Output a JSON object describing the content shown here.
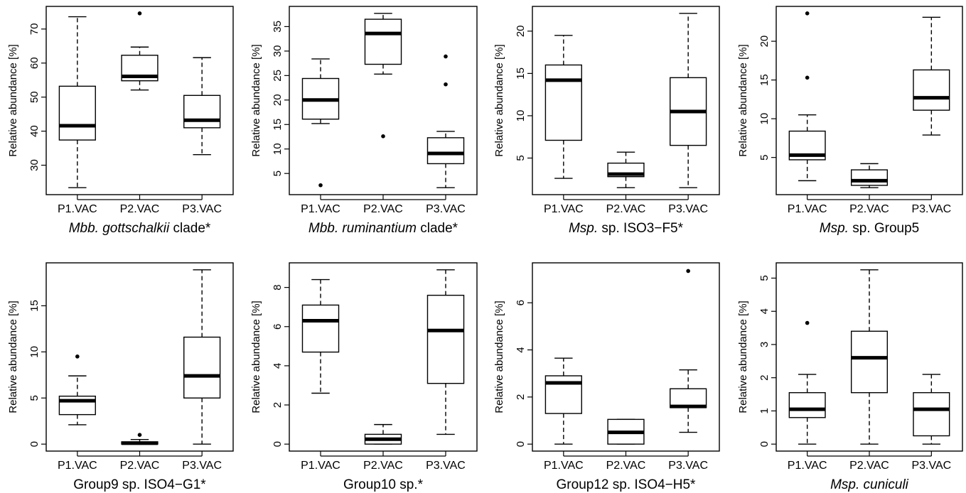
{
  "figure": {
    "ylabel": "Relative abundance [%]"
  },
  "chart_data": [
    {
      "type": "box",
      "title_italic": "Mbb. gottschalkii",
      "title_normal": " clade*",
      "ylabel": "Relative abundance [%]",
      "categories": [
        "P1.VAC",
        "P2.VAC",
        "P3.VAC"
      ],
      "yticks": [
        30,
        40,
        50,
        60,
        70
      ],
      "ylim": [
        23.4,
        74.6
      ],
      "boxes": [
        {
          "whisker_low": 23.4,
          "q1": 37.4,
          "median": 41.6,
          "q3": 53.2,
          "whisker_high": 73.6,
          "outliers": []
        },
        {
          "whisker_low": 52.1,
          "q1": 54.8,
          "median": 56.1,
          "q3": 62.3,
          "whisker_high": 64.7,
          "outliers": [
            74.6
          ]
        },
        {
          "whisker_low": 33.1,
          "q1": 41.0,
          "median": 43.2,
          "q3": 50.5,
          "whisker_high": 61.6,
          "outliers": []
        }
      ]
    },
    {
      "type": "box",
      "title_italic": "Mbb. ruminantium",
      "title_normal": " clade*",
      "ylabel": "Relative abundance [%]",
      "categories": [
        "P1.VAC",
        "P2.VAC",
        "P3.VAC"
      ],
      "yticks": [
        5,
        10,
        15,
        20,
        25,
        30,
        35
      ],
      "ylim": [
        2.1,
        37.7
      ],
      "boxes": [
        {
          "whisker_low": 15.2,
          "q1": 16.1,
          "median": 20.0,
          "q3": 24.4,
          "whisker_high": 28.4,
          "outliers": [
            2.6
          ]
        },
        {
          "whisker_low": 25.3,
          "q1": 27.3,
          "median": 33.6,
          "q3": 36.5,
          "whisker_high": 37.7,
          "outliers": [
            12.6
          ]
        },
        {
          "whisker_low": 2.1,
          "q1": 7.0,
          "median": 9.1,
          "q3": 12.3,
          "whisker_high": 13.6,
          "outliers": [
            23.2,
            28.9
          ]
        }
      ]
    },
    {
      "type": "box",
      "title_italic": "Msp.",
      "title_normal": " sp. ISO3−F5*",
      "ylabel": "Relative abundance [%]",
      "categories": [
        "P1.VAC",
        "P2.VAC",
        "P3.VAC"
      ],
      "yticks": [
        5,
        10,
        15,
        20
      ],
      "ylim": [
        1.5,
        22.1
      ],
      "boxes": [
        {
          "whisker_low": 2.6,
          "q1": 7.1,
          "median": 14.2,
          "q3": 16.0,
          "whisker_high": 19.5,
          "outliers": []
        },
        {
          "whisker_low": 1.5,
          "q1": 2.8,
          "median": 3.1,
          "q3": 4.4,
          "whisker_high": 5.7,
          "outliers": []
        },
        {
          "whisker_low": 1.5,
          "q1": 6.5,
          "median": 10.5,
          "q3": 14.5,
          "whisker_high": 22.1,
          "outliers": []
        }
      ]
    },
    {
      "type": "box",
      "title_italic": "Msp.",
      "title_normal": " sp. Group5",
      "ylabel": "Relative abundance [%]",
      "categories": [
        "P1.VAC",
        "P2.VAC",
        "P3.VAC"
      ],
      "yticks": [
        5,
        10,
        15,
        20
      ],
      "ylim": [
        1.1,
        23.6
      ],
      "boxes": [
        {
          "whisker_low": 2.0,
          "q1": 4.7,
          "median": 5.3,
          "q3": 8.4,
          "whisker_high": 10.5,
          "outliers": [
            15.3,
            23.6
          ]
        },
        {
          "whisker_low": 1.1,
          "q1": 1.4,
          "median": 2.0,
          "q3": 3.4,
          "whisker_high": 4.2,
          "outliers": []
        },
        {
          "whisker_low": 7.9,
          "q1": 11.1,
          "median": 12.7,
          "q3": 16.3,
          "whisker_high": 23.1,
          "outliers": []
        }
      ]
    },
    {
      "type": "box",
      "title_italic": "",
      "title_normal": "Group9 sp. ISO4−G1*",
      "ylabel": "Relative abundance [%]",
      "categories": [
        "P1.VAC",
        "P2.VAC",
        "P3.VAC"
      ],
      "yticks": [
        0,
        5,
        10,
        15
      ],
      "ylim": [
        0,
        18.9
      ],
      "boxes": [
        {
          "whisker_low": 2.1,
          "q1": 3.2,
          "median": 4.7,
          "q3": 5.2,
          "whisker_high": 7.4,
          "outliers": [
            9.5
          ]
        },
        {
          "whisker_low": 0.0,
          "q1": 0.0,
          "median": 0.1,
          "q3": 0.25,
          "whisker_high": 0.5,
          "outliers": [
            1.0
          ]
        },
        {
          "whisker_low": 0.0,
          "q1": 5.0,
          "median": 7.4,
          "q3": 11.6,
          "whisker_high": 18.9,
          "outliers": []
        }
      ]
    },
    {
      "type": "box",
      "title_italic": "",
      "title_normal": "Group10 sp.*",
      "ylabel": "Relative abundance [%]",
      "categories": [
        "P1.VAC",
        "P2.VAC",
        "P3.VAC"
      ],
      "yticks": [
        0,
        2,
        4,
        6,
        8
      ],
      "ylim": [
        0,
        8.9
      ],
      "boxes": [
        {
          "whisker_low": 2.6,
          "q1": 4.7,
          "median": 6.3,
          "q3": 7.1,
          "whisker_high": 8.4,
          "outliers": []
        },
        {
          "whisker_low": 0.0,
          "q1": 0.0,
          "median": 0.25,
          "q3": 0.5,
          "whisker_high": 1.0,
          "outliers": []
        },
        {
          "whisker_low": 0.5,
          "q1": 3.1,
          "median": 5.8,
          "q3": 7.6,
          "whisker_high": 8.9,
          "outliers": []
        }
      ]
    },
    {
      "type": "box",
      "title_italic": "",
      "title_normal": "Group12 sp. ISO4−H5*",
      "ylabel": "Relative abundance [%]",
      "categories": [
        "P1.VAC",
        "P2.VAC",
        "P3.VAC"
      ],
      "yticks": [
        0,
        2,
        4,
        6
      ],
      "ylim": [
        0,
        7.4
      ],
      "boxes": [
        {
          "whisker_low": 0.0,
          "q1": 1.3,
          "median": 2.6,
          "q3": 2.9,
          "whisker_high": 3.65,
          "outliers": []
        },
        {
          "whisker_low": 0.0,
          "q1": 0.0,
          "median": 0.5,
          "q3": 1.05,
          "whisker_high": 1.05,
          "outliers": []
        },
        {
          "whisker_low": 0.5,
          "q1": 1.55,
          "median": 1.6,
          "q3": 2.35,
          "whisker_high": 3.15,
          "outliers": [
            7.35
          ]
        }
      ]
    },
    {
      "type": "box",
      "title_italic": "Msp. cuniculi",
      "title_normal": "",
      "ylabel": "Relative abundance [%]",
      "categories": [
        "P1.VAC",
        "P2.VAC",
        "P3.VAC"
      ],
      "yticks": [
        0,
        1,
        2,
        3,
        4,
        5
      ],
      "ylim": [
        0,
        5.25
      ],
      "boxes": [
        {
          "whisker_low": 0.0,
          "q1": 0.8,
          "median": 1.05,
          "q3": 1.55,
          "whisker_high": 2.1,
          "outliers": [
            3.65
          ]
        },
        {
          "whisker_low": 0.0,
          "q1": 1.55,
          "median": 2.6,
          "q3": 3.4,
          "whisker_high": 5.25,
          "outliers": []
        },
        {
          "whisker_low": 0.0,
          "q1": 0.25,
          "median": 1.05,
          "q3": 1.55,
          "whisker_high": 2.1,
          "outliers": []
        }
      ]
    }
  ]
}
